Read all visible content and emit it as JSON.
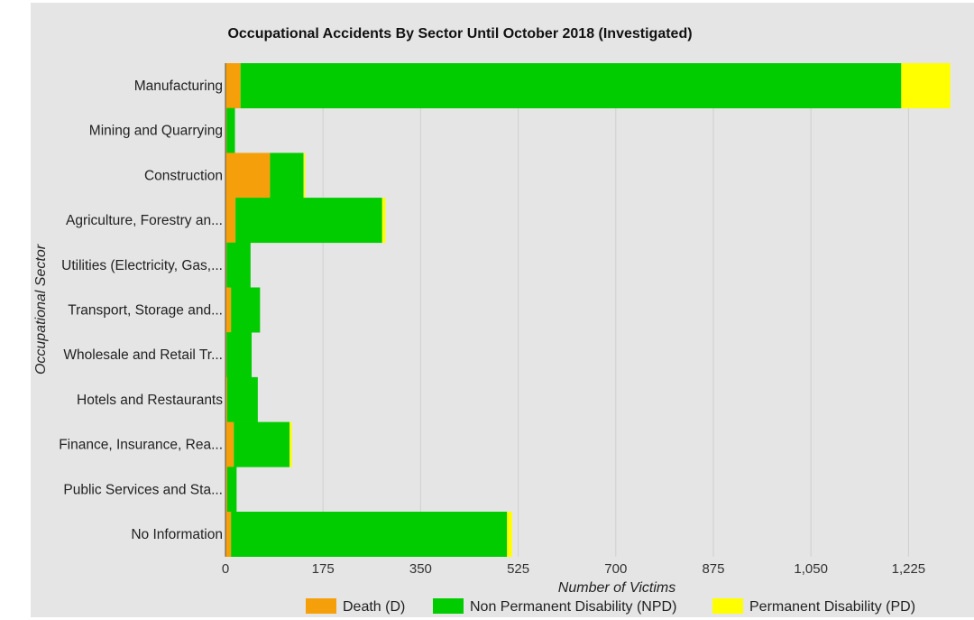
{
  "chart_data": {
    "type": "bar",
    "orientation": "horizontal",
    "stacked": true,
    "title": "Occupational Accidents By Sector Until October 2018 (Investigated)",
    "xlabel": "Number of Victims",
    "ylabel": "Occupational Sector",
    "xlim": [
      0,
      1302
    ],
    "xticks": [
      0,
      175,
      350,
      525,
      700,
      875,
      1050,
      1225
    ],
    "xtick_labels": [
      "0",
      "175",
      "350",
      "525",
      "700",
      "875",
      "1,050",
      "1,225"
    ],
    "grid": true,
    "legend_position": "bottom",
    "categories": [
      "Manufacturing",
      "Mining and Quarrying",
      "Construction",
      "Agriculture, Forestry an...",
      "Utilities (Electricity, Gas,...",
      "Transport, Storage and...",
      "Wholesale and Retail Tr...",
      "Hotels and Restaurants",
      "Finance, Insurance, Rea...",
      "Public Services and Sta...",
      "No Information"
    ],
    "series": [
      {
        "name": "Death (D)",
        "color": "#f5a00a",
        "values": [
          27,
          2,
          80,
          18,
          2,
          10,
          2,
          3,
          15,
          3,
          10
        ]
      },
      {
        "name": "Non Permanent Disability (NPD)",
        "color": "#00cc00",
        "values": [
          1185,
          15,
          60,
          263,
          43,
          52,
          45,
          55,
          100,
          17,
          495
        ]
      },
      {
        "name": "Permanent Disability (PD)",
        "color": "#ffff00",
        "values": [
          88,
          0,
          3,
          6,
          0,
          0,
          0,
          0,
          4,
          0,
          9
        ]
      }
    ]
  }
}
